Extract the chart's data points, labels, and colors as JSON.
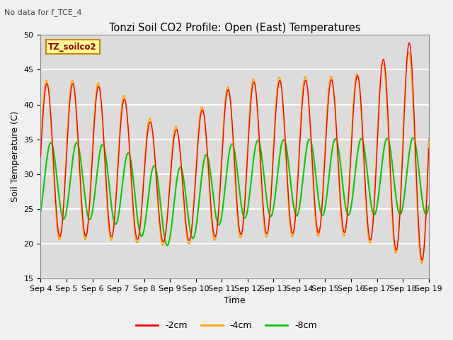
{
  "title": "Tonzi Soil CO2 Profile: Open (East) Temperatures",
  "subtitle": "No data for f_TCE_4",
  "xlabel": "Time",
  "ylabel": "Soil Temperature (C)",
  "ylim": [
    15,
    50
  ],
  "xtick_labels": [
    "Sep 4",
    "Sep 5",
    "Sep 6",
    "Sep 7",
    "Sep 8",
    "Sep 9",
    "Sep 10",
    "Sep 11",
    "Sep 12",
    "Sep 13",
    "Sep 14",
    "Sep 15",
    "Sep 16",
    "Sep 17",
    "Sep 18",
    "Sep 19"
  ],
  "colors": {
    "2cm": "#ff0000",
    "4cm": "#ffa500",
    "8cm": "#00cc00"
  },
  "legend_labels": [
    "-2cm",
    "-4cm",
    "-8cm"
  ],
  "legend_box_color": "#ffff99",
  "legend_box_label": "TZ_soilco2",
  "bg_color": "#dcdcdc",
  "grid_color": "#ffffff",
  "fig_bg": "#f0f0f0"
}
